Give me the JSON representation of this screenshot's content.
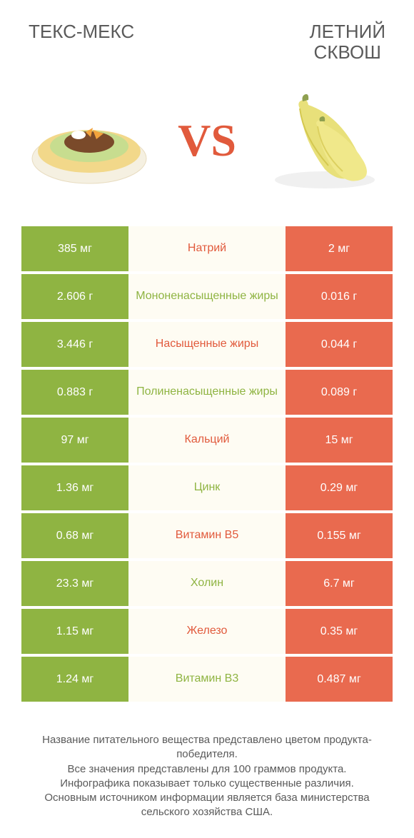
{
  "header": {
    "left_title": "ТЕКС-МЕКС",
    "right_title_line1": "ЛЕТНИЙ",
    "right_title_line2": "СКВОШ"
  },
  "vs_label": "VS",
  "colors": {
    "left_cell_bg": "#8fb442",
    "right_cell_bg": "#e96a4f",
    "mid_bg": "#fefcf3",
    "mid_orange": "#e15a3c",
    "mid_green": "#8fb442",
    "title_color": "#5a5a5a",
    "vs_color": "#e15a3c"
  },
  "rows": [
    {
      "left": "385 мг",
      "mid": "Натрий",
      "mid_color": "orange",
      "right": "2 мг"
    },
    {
      "left": "2.606 г",
      "mid": "Мононенасыщенные жиры",
      "mid_color": "green",
      "right": "0.016 г"
    },
    {
      "left": "3.446 г",
      "mid": "Насыщенные жиры",
      "mid_color": "orange",
      "right": "0.044 г"
    },
    {
      "left": "0.883 г",
      "mid": "Полиненасыщенные жиры",
      "mid_color": "green",
      "right": "0.089 г"
    },
    {
      "left": "97 мг",
      "mid": "Кальций",
      "mid_color": "orange",
      "right": "15 мг"
    },
    {
      "left": "1.36 мг",
      "mid": "Цинк",
      "mid_color": "green",
      "right": "0.29 мг"
    },
    {
      "left": "0.68 мг",
      "mid": "Витамин B5",
      "mid_color": "orange",
      "right": "0.155 мг"
    },
    {
      "left": "23.3 мг",
      "mid": "Холин",
      "mid_color": "green",
      "right": "6.7 мг"
    },
    {
      "left": "1.15 мг",
      "mid": "Железо",
      "mid_color": "orange",
      "right": "0.35 мг"
    },
    {
      "left": "1.24 мг",
      "mid": "Витамин B3",
      "mid_color": "green",
      "right": "0.487 мг"
    }
  ],
  "footer": {
    "line1": "Название питательного вещества представлено цветом продукта-победителя.",
    "line2": "Все значения представлены для 100 граммов продукта.",
    "line3": "Инфографика показывает только существенные различия.",
    "line4": "Основным источником информации является база министерства сельского хозяйства США."
  }
}
